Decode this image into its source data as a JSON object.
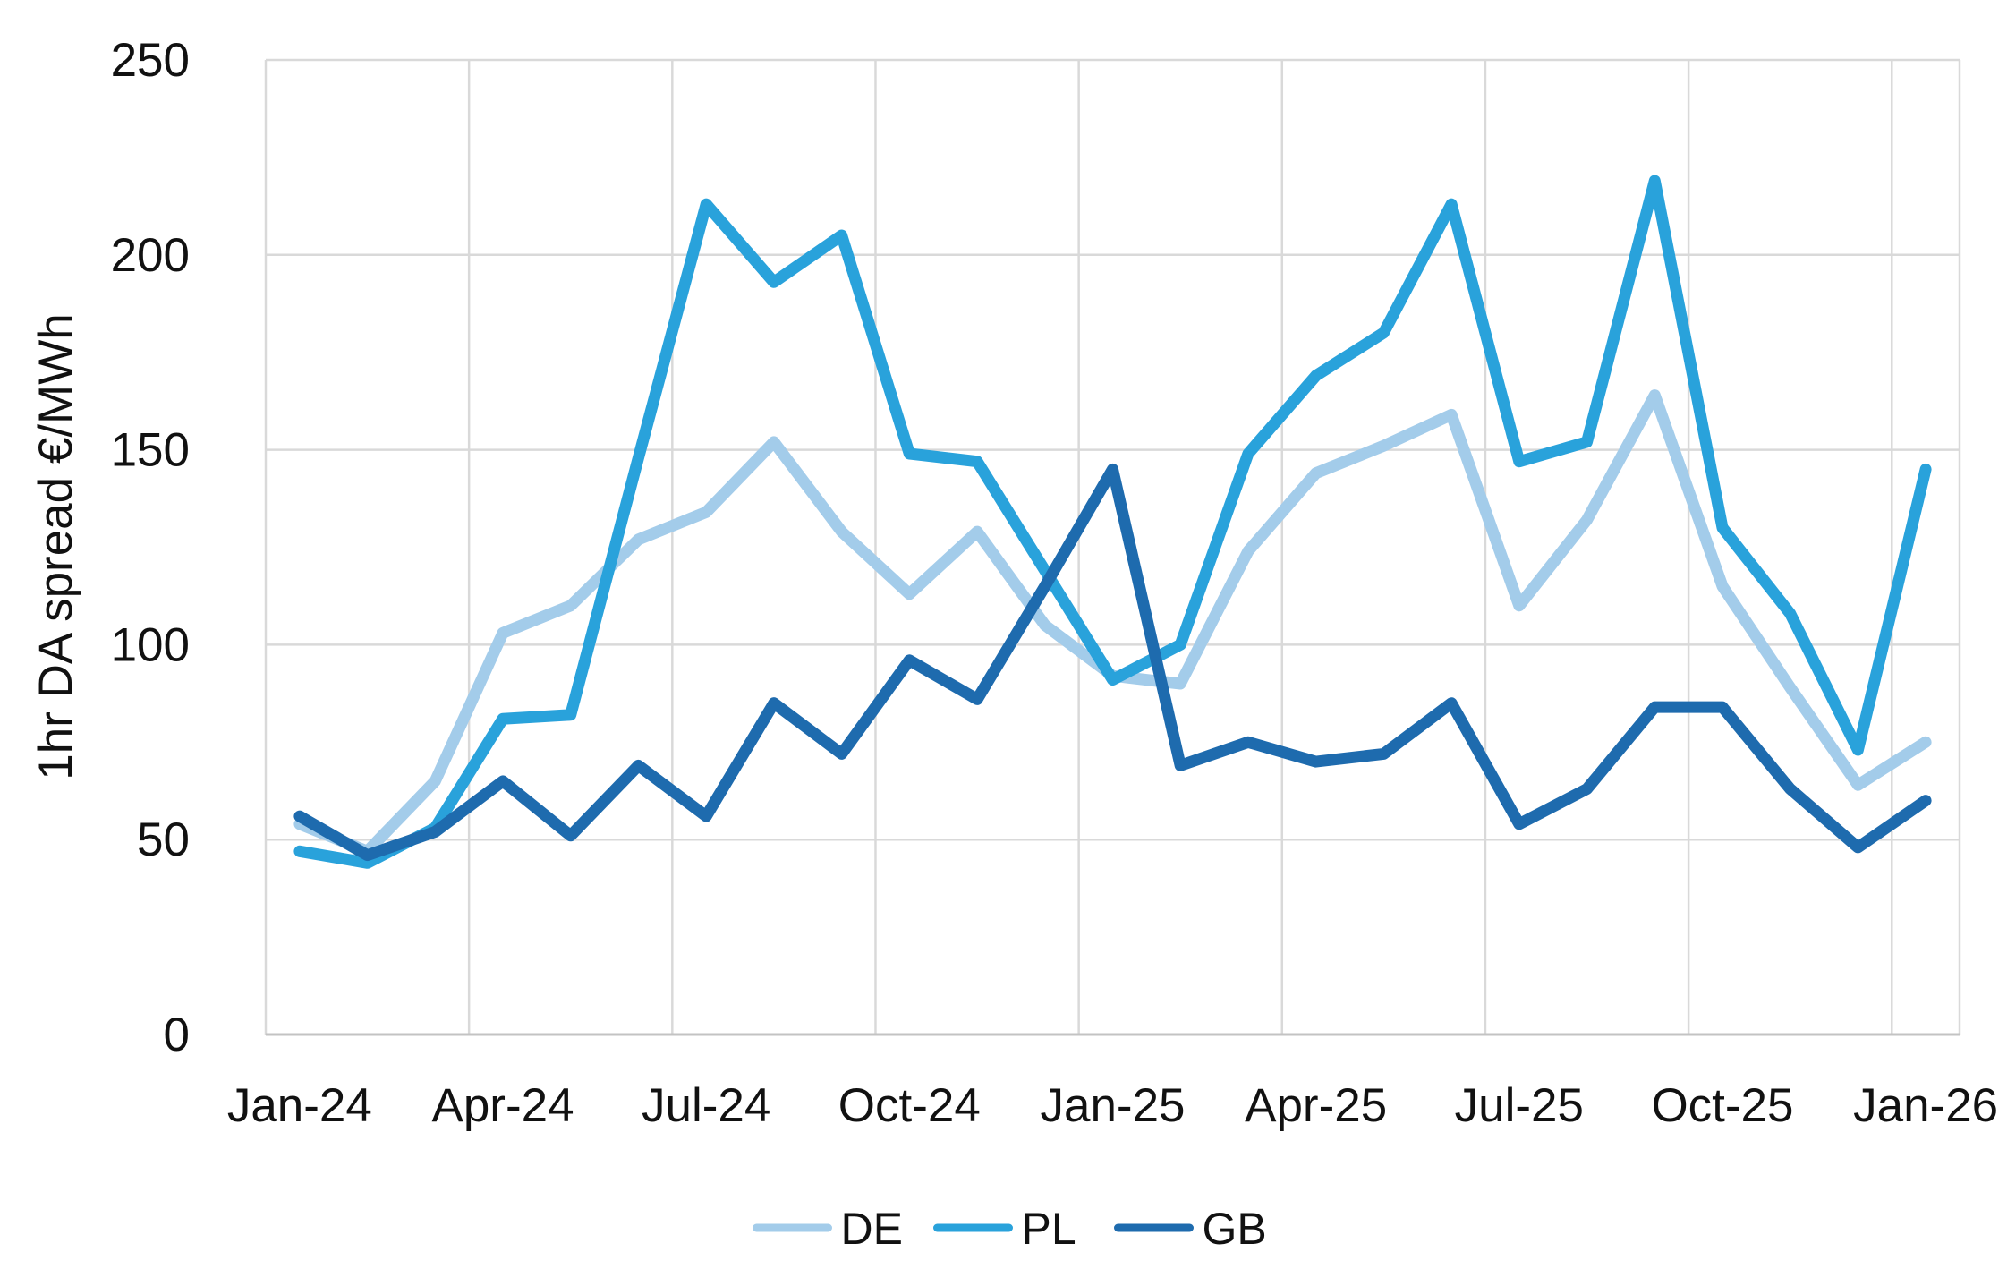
{
  "chart_data": {
    "type": "line",
    "title": "",
    "xlabel": "",
    "ylabel": "1hr DA spread €/MWh",
    "ylim": [
      0,
      250
    ],
    "y_ticks": [
      0,
      50,
      100,
      150,
      200,
      250
    ],
    "x_tick_labels": [
      "Jan-24",
      "Apr-24",
      "Jul-24",
      "Oct-24",
      "Jan-25",
      "Apr-25",
      "Jul-25",
      "Oct-25",
      "Jan-26"
    ],
    "x_tick_every_n_months": 3,
    "grid": "both",
    "legend_position": "bottom-center",
    "months": [
      "Jan-24",
      "Feb-24",
      "Mar-24",
      "Apr-24",
      "May-24",
      "Jun-24",
      "Jul-24",
      "Aug-24",
      "Sep-24",
      "Oct-24",
      "Nov-24",
      "Dec-24",
      "Jan-25",
      "Feb-25",
      "Mar-25",
      "Apr-25",
      "May-25",
      "Jun-25",
      "Jul-25",
      "Aug-25",
      "Sep-25",
      "Oct-25",
      "Nov-25",
      "Dec-25",
      "Jan-26"
    ],
    "series": [
      {
        "name": "DE",
        "color": "#A3CCEA",
        "values": [
          54,
          47,
          65,
          103,
          110,
          127,
          134,
          152,
          129,
          113,
          129,
          105,
          92,
          90,
          124,
          144,
          151,
          159,
          110,
          132,
          164,
          115,
          89,
          64,
          75
        ]
      },
      {
        "name": "PL",
        "color": "#29A2DB",
        "values": [
          47,
          44,
          53,
          81,
          82,
          148,
          213,
          193,
          205,
          149,
          147,
          119,
          91,
          100,
          149,
          169,
          180,
          213,
          147,
          152,
          219,
          130,
          108,
          73,
          145
        ]
      },
      {
        "name": "GB",
        "color": "#1E6BAE",
        "values": [
          56,
          46,
          52,
          65,
          51,
          69,
          56,
          85,
          72,
          96,
          86,
          115,
          145,
          69,
          75,
          70,
          72,
          85,
          54,
          63,
          84,
          84,
          63,
          48,
          60
        ]
      }
    ],
    "style_colors": {
      "gridline": "#D9D9D9",
      "axis_line": "#C3C3C3",
      "tick_text": "#111111"
    }
  }
}
